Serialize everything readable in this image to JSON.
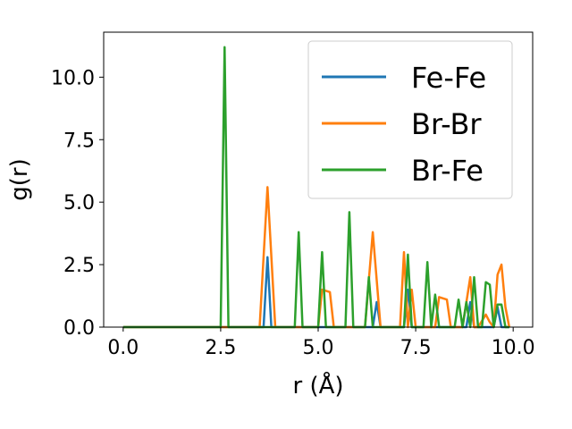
{
  "chart_data": {
    "type": "line",
    "xlabel": "r (Å)",
    "ylabel": "g(r)",
    "xlim": [
      -0.5,
      10.5
    ],
    "ylim": [
      0,
      11.8
    ],
    "xticks": [
      "0.0",
      "2.5",
      "5.0",
      "7.5",
      "10.0"
    ],
    "yticks": [
      "0.0",
      "2.5",
      "5.0",
      "7.5",
      "10.0"
    ],
    "grid": false,
    "legend_position": "top-right",
    "series": [
      {
        "name": "Fe-Fe",
        "color": "#1f77b4",
        "points": [
          [
            0,
            0
          ],
          [
            3.6,
            0
          ],
          [
            3.7,
            2.8
          ],
          [
            3.8,
            0
          ],
          [
            6.4,
            0
          ],
          [
            6.5,
            1.0
          ],
          [
            6.6,
            0
          ],
          [
            7.2,
            0
          ],
          [
            7.3,
            1.5
          ],
          [
            7.4,
            0
          ],
          [
            8.8,
            0
          ],
          [
            8.9,
            1.0
          ],
          [
            9.0,
            0
          ],
          [
            9.1,
            0
          ],
          [
            9.5,
            0
          ],
          [
            9.6,
            0.8
          ],
          [
            9.7,
            0
          ],
          [
            9.9,
            0
          ]
        ]
      },
      {
        "name": "Br-Br",
        "color": "#ff7f0e",
        "points": [
          [
            0,
            0
          ],
          [
            3.5,
            0
          ],
          [
            3.7,
            5.6
          ],
          [
            3.9,
            0
          ],
          [
            5.0,
            0
          ],
          [
            5.1,
            1.5
          ],
          [
            5.3,
            1.4
          ],
          [
            5.4,
            0
          ],
          [
            6.2,
            0
          ],
          [
            6.4,
            3.8
          ],
          [
            6.6,
            0
          ],
          [
            7.1,
            0
          ],
          [
            7.2,
            3.0
          ],
          [
            7.3,
            0
          ],
          [
            7.4,
            1.5
          ],
          [
            7.5,
            0
          ],
          [
            7.8,
            0
          ],
          [
            8.0,
            0
          ],
          [
            8.1,
            1.2
          ],
          [
            8.3,
            1.1
          ],
          [
            8.4,
            0
          ],
          [
            8.7,
            0
          ],
          [
            8.9,
            2.0
          ],
          [
            9.0,
            0
          ],
          [
            9.1,
            0
          ],
          [
            9.3,
            0.5
          ],
          [
            9.4,
            0.2
          ],
          [
            9.5,
            0
          ],
          [
            9.6,
            2.1
          ],
          [
            9.7,
            2.5
          ],
          [
            9.8,
            0.8
          ],
          [
            9.9,
            0
          ]
        ]
      },
      {
        "name": "Br-Fe",
        "color": "#2ca02c",
        "points": [
          [
            0,
            0
          ],
          [
            2.5,
            0
          ],
          [
            2.6,
            11.2
          ],
          [
            2.7,
            0
          ],
          [
            4.4,
            0
          ],
          [
            4.5,
            3.8
          ],
          [
            4.6,
            0
          ],
          [
            5.0,
            0
          ],
          [
            5.1,
            3.0
          ],
          [
            5.2,
            0
          ],
          [
            5.7,
            0
          ],
          [
            5.8,
            4.6
          ],
          [
            5.9,
            0
          ],
          [
            6.2,
            0
          ],
          [
            6.3,
            2.0
          ],
          [
            6.4,
            0
          ],
          [
            7.2,
            0
          ],
          [
            7.3,
            2.9
          ],
          [
            7.4,
            0
          ],
          [
            7.7,
            0
          ],
          [
            7.8,
            2.6
          ],
          [
            7.9,
            0
          ],
          [
            8.0,
            1.3
          ],
          [
            8.1,
            0
          ],
          [
            8.5,
            0
          ],
          [
            8.6,
            1.1
          ],
          [
            8.7,
            0
          ],
          [
            8.8,
            1.0
          ],
          [
            8.9,
            0
          ],
          [
            9.0,
            2.0
          ],
          [
            9.1,
            0
          ],
          [
            9.2,
            0
          ],
          [
            9.3,
            1.8
          ],
          [
            9.4,
            1.7
          ],
          [
            9.5,
            0
          ],
          [
            9.6,
            0.9
          ],
          [
            9.7,
            0.9
          ],
          [
            9.8,
            0
          ],
          [
            9.9,
            0
          ]
        ]
      }
    ]
  }
}
